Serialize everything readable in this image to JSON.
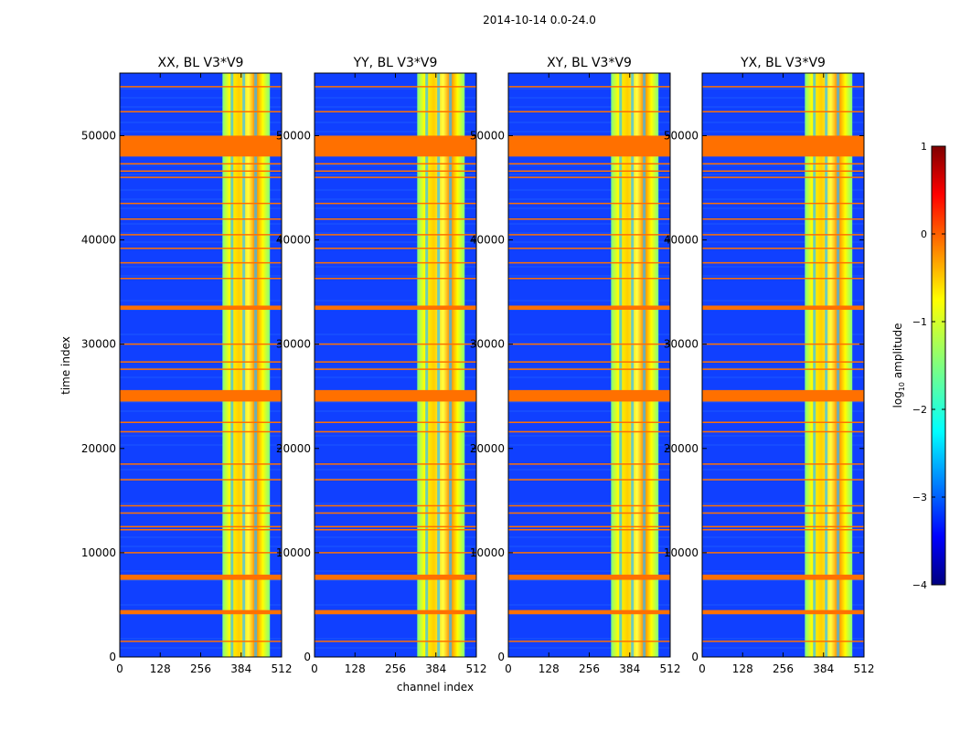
{
  "chart_data": {
    "type": "heatmap",
    "suptitle": "2014-10-14 0.0-24.0",
    "xlabel": "channel index",
    "ylabel": "time index",
    "xlim": [
      0,
      512
    ],
    "ylim": [
      0,
      56000
    ],
    "xticks": [
      0,
      128,
      256,
      384,
      512
    ],
    "yticks": [
      0,
      10000,
      20000,
      30000,
      40000,
      50000
    ],
    "panels": [
      {
        "title": "XX, BL V3*V9"
      },
      {
        "title": "YY, BL V3*V9"
      },
      {
        "title": "XY, BL V3*V9"
      },
      {
        "title": "YX, BL V3*V9"
      }
    ],
    "colorbar": {
      "label": "log",
      "label_sub": "10",
      "label_tail": " amplitude",
      "range": [
        -4,
        1
      ],
      "ticks": [
        1,
        0,
        -1,
        -2,
        -3,
        -4
      ],
      "tick_labels": [
        "1",
        "0",
        "−1",
        "−2",
        "−3",
        "−4"
      ],
      "colormap": "jet"
    },
    "flagged_bands": [
      {
        "from": 48000,
        "to": 50000
      },
      {
        "from": 24500,
        "to": 25600
      },
      {
        "from": 33300,
        "to": 33700
      },
      {
        "from": 4100,
        "to": 4500
      },
      {
        "from": 7400,
        "to": 7900
      }
    ],
    "flag_lines": [
      46000,
      46600,
      47300,
      43500,
      42000,
      40500,
      39200,
      37800,
      36300,
      30000,
      28300,
      27600,
      22500,
      21600,
      18500,
      17000,
      14500,
      13800,
      12500,
      12200,
      10000,
      1500,
      54700,
      52300
    ],
    "bright_channel_range": [
      325,
      475
    ],
    "flag_color": "#ff7000"
  }
}
